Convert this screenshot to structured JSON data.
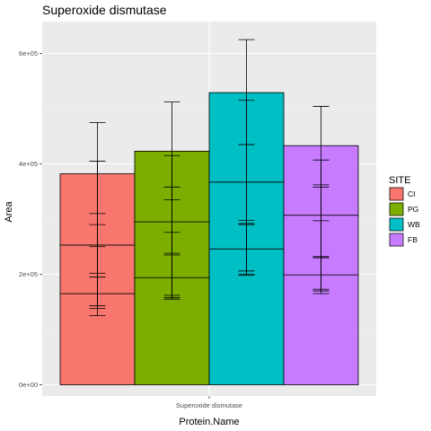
{
  "chart_data": {
    "type": "bar",
    "title": "Superoxide dismutase",
    "xlabel": "Protein.Name",
    "ylabel": "Area",
    "categories": [
      "Superoxide dismutase"
    ],
    "ylim": [
      0,
      640000
    ],
    "y_ticks": [
      0,
      200000,
      400000,
      600000
    ],
    "y_tick_labels": [
      "0e+00",
      "2e+05",
      "4e+05",
      "6e+05"
    ],
    "grid": true,
    "legend": {
      "title": "SITE",
      "position": "right"
    },
    "series": [
      {
        "name": "CI",
        "color": "#F8766D",
        "segments": [
          165000,
          88000,
          129000
        ],
        "errorbars": [
          {
            "center": 165000,
            "low": 138000,
            "high": 202000
          },
          {
            "center": 253000,
            "low": 125000,
            "high": 405000
          },
          {
            "center": 382000,
            "low": 290000,
            "high": 475000
          },
          {
            "center": 325000,
            "low": 195000,
            "high": 310000
          },
          {
            "center": 235000,
            "low": 143000,
            "high": 250000
          }
        ]
      },
      {
        "name": "PG",
        "color": "#7CAE00",
        "segments": [
          194000,
          101000,
          128000
        ],
        "errorbars": [
          {
            "center": 194000,
            "low": 162000,
            "high": 238000
          },
          {
            "center": 295000,
            "low": 155000,
            "high": 415000
          },
          {
            "center": 423000,
            "low": 335000,
            "high": 512000
          },
          {
            "center": 340000,
            "low": 235000,
            "high": 358000
          },
          {
            "center": 250000,
            "low": 158000,
            "high": 276000
          }
        ]
      },
      {
        "name": "WB",
        "color": "#00BFC4",
        "segments": [
          246000,
          121000,
          162000
        ],
        "errorbars": [
          {
            "center": 246000,
            "low": 206000,
            "high": 292000
          },
          {
            "center": 367000,
            "low": 200000,
            "high": 515000
          },
          {
            "center": 529000,
            "low": 435000,
            "high": 625000
          },
          {
            "center": 400000,
            "low": 290000,
            "high": 435000
          },
          {
            "center": 268000,
            "low": 198000,
            "high": 298000
          }
        ]
      },
      {
        "name": "FB",
        "color": "#C77CFF",
        "segments": [
          199000,
          108000,
          126000
        ],
        "errorbars": [
          {
            "center": 199000,
            "low": 170000,
            "high": 232000
          },
          {
            "center": 307000,
            "low": 165000,
            "high": 407000
          },
          {
            "center": 433000,
            "low": 358000,
            "high": 504000
          },
          {
            "center": 355000,
            "low": 230000,
            "high": 362000
          },
          {
            "center": 260000,
            "low": 173000,
            "high": 297000
          }
        ]
      }
    ]
  }
}
